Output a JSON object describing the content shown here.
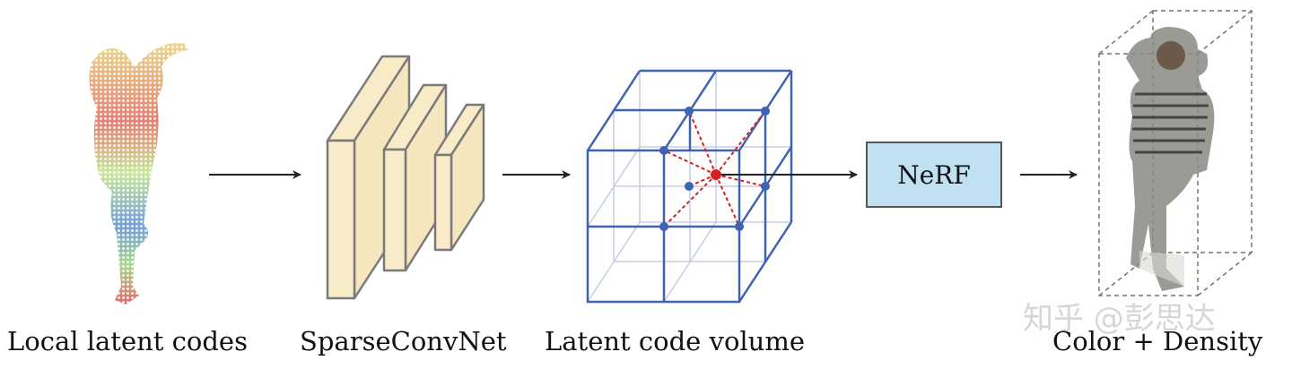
{
  "labels": {
    "input": "Local latent codes",
    "network": "SparseConvNet",
    "volume": "Latent code volume",
    "output": "Color + Density"
  },
  "nerf_box": {
    "label": "NeRF",
    "fill": "#bfe1f2"
  },
  "watermark": "知乎 @彭思达",
  "colors": {
    "slab_fill": "#f8ebc8",
    "slab_stroke": "#7a7a7a",
    "grid": "#3f63b0",
    "grid_faint": "#c5cde3",
    "sample_point": "#d62020",
    "arrow": "#222222"
  }
}
